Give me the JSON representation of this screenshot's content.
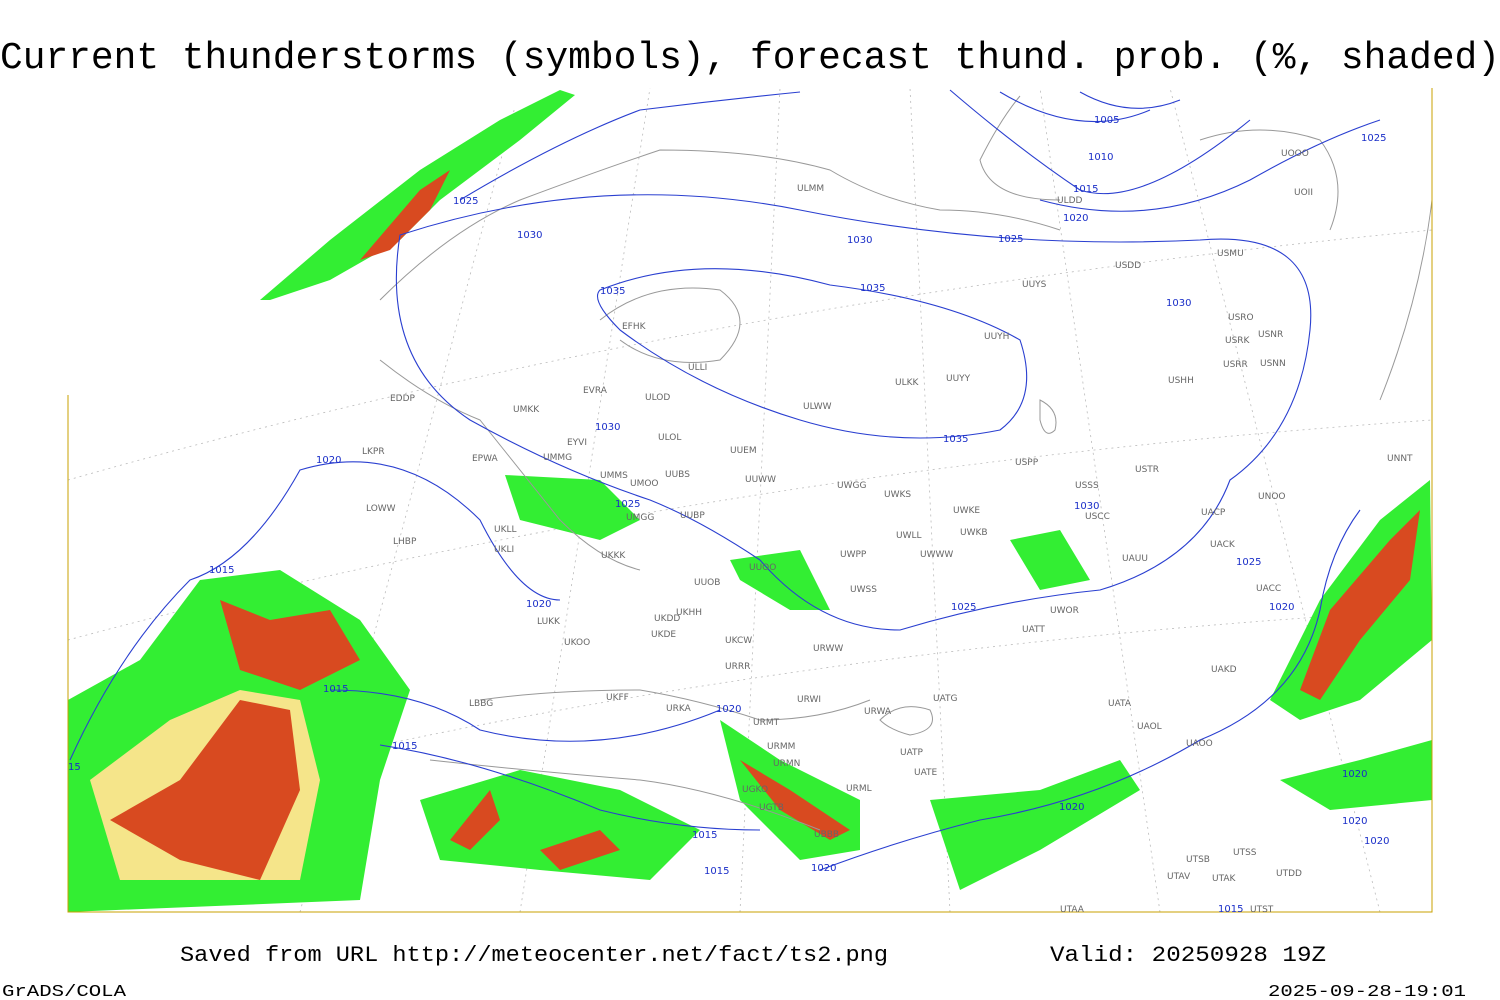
{
  "title": "Current thunderstorms (symbols), forecast thund. prob. (%, shaded)",
  "footer": {
    "source": "Saved from URL http://meteocenter.net/fact/ts2.png",
    "valid": "Valid: 20250928 19Z",
    "software": "GrADS/COLA",
    "timestamp": "2025-09-28-19:01"
  },
  "isobar_labels": [
    "1025",
    "1030",
    "1035",
    "1030",
    "1035",
    "1025",
    "1020",
    "1015",
    "1010",
    "1005",
    "1025",
    "1030",
    "1035",
    "1030",
    "1025",
    "1020",
    "1015",
    "1020",
    "1025",
    "1030",
    "1025",
    "1020",
    "1015",
    "1015",
    "1020",
    "1015",
    "1015",
    "1020",
    "1020",
    "1020",
    "1020",
    "1020",
    "1015",
    "15"
  ],
  "stations": [
    "EFHK",
    "ULLI",
    "EVRA",
    "ULOD",
    "UMKK",
    "EDDP",
    "ULOL",
    "EYVI",
    "UUEM",
    "EPWA",
    "UMMG",
    "LKPR",
    "UMMS",
    "UMOO",
    "UUBS",
    "UUWW",
    "UWGG",
    "UWKS",
    "UUYY",
    "ULKK",
    "ULWW",
    "UUYH",
    "UUYS",
    "USDD",
    "USMU",
    "USRO",
    "USRK",
    "USNR",
    "USRR",
    "USNN",
    "USHH",
    "USPP",
    "USSS",
    "USTR",
    "USCC",
    "UACP",
    "UNOO",
    "UNNT",
    "ULMM",
    "ULDD",
    "UOOO",
    "UOII",
    "UWKE",
    "UWKB",
    "UWLL",
    "UWWW",
    "UWPP",
    "UWSS",
    "UAUU",
    "UACK",
    "UACC",
    "UAKD",
    "UATT",
    "UWOR",
    "UATG",
    "UATA",
    "UAOL",
    "UAOO",
    "UUBP",
    "UMGG",
    "UKLL",
    "UKLI",
    "UKKK",
    "UUOB",
    "UUOO",
    "UKHH",
    "UKDD",
    "UKDE",
    "LUKK",
    "UKOO",
    "UKCW",
    "URRR",
    "URWW",
    "URWI",
    "URWA",
    "UKFF",
    "URKA",
    "URMT",
    "URMM",
    "URMN",
    "UGKO",
    "UGTB",
    "UBBB",
    "URML",
    "UATP",
    "UATE",
    "LBBG",
    "UTSS",
    "UTSB",
    "UTAV",
    "UTAK",
    "UTDD",
    "UTAA",
    "UTST",
    "LOWW",
    "LHBP"
  ]
}
